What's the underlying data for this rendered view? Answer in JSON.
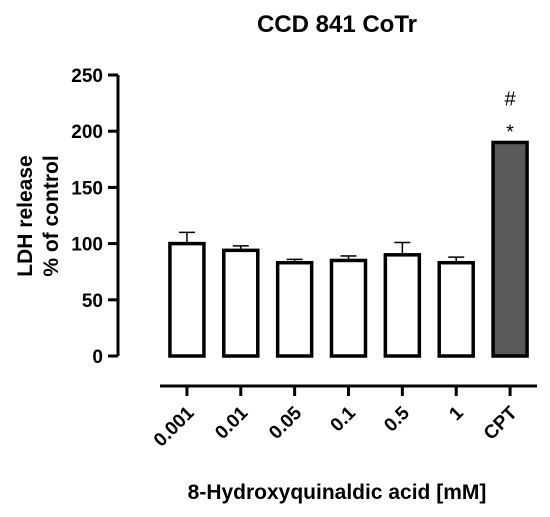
{
  "chart_data": {
    "type": "bar",
    "title": "CCD 841 CoTr",
    "xlabel": "8-Hydroxyquinaldic acid [mM]",
    "ylabel_line1": "LDH release",
    "ylabel_line2": "% of control",
    "ylim": [
      0,
      250
    ],
    "yticks": [
      "0",
      "50",
      "100",
      "150",
      "200",
      "250"
    ],
    "categories": [
      "0.001",
      "0.01",
      "0.05",
      "0.1",
      "0.5",
      "1",
      "CPT"
    ],
    "values": [
      100,
      94,
      83,
      85,
      90,
      83,
      190
    ],
    "errors": [
      10,
      4,
      3,
      4,
      11,
      5,
      0
    ],
    "bar_colors": [
      "#ffffff",
      "#ffffff",
      "#ffffff",
      "#ffffff",
      "#ffffff",
      "#ffffff",
      "#595959"
    ],
    "annotations": [
      {
        "category": "CPT",
        "hash": "#",
        "star": "*"
      }
    ],
    "grid": false,
    "legend": "none"
  }
}
